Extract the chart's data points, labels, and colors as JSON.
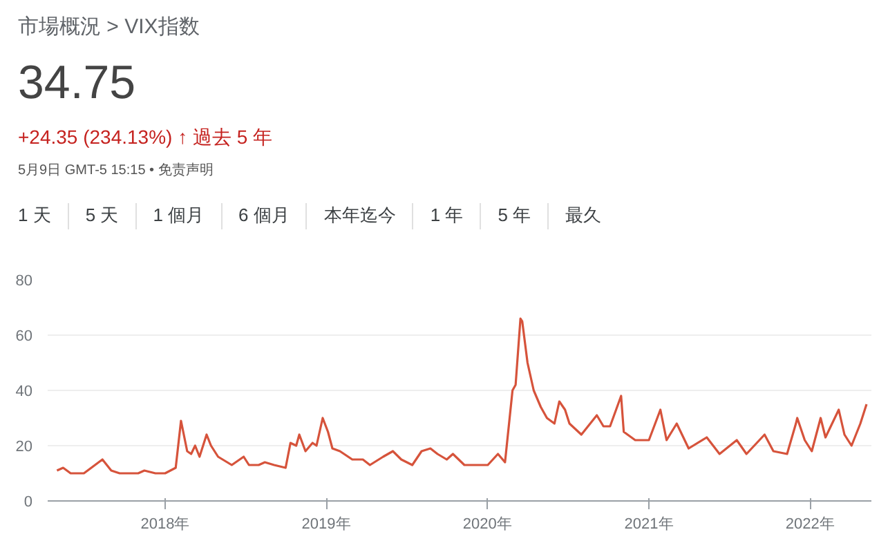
{
  "chart_data": {
    "type": "line",
    "title": "市場概況 > VIX指数",
    "subtitle": "34.75",
    "annotations": [
      "+24.35 (234.13%) ↑ 過去 5 年",
      "5月9日 GMT-5 15:15 • 免责声明",
      "1 天",
      "5 天",
      "1 個月",
      "6 個月",
      "本年迄今",
      "1 年",
      "5 年",
      "最久"
    ],
    "x": [
      "2017-05-01",
      "2017-05-15",
      "2017-06-01",
      "2017-07-01",
      "2017-08-12",
      "2017-09-01",
      "2017-09-20",
      "2017-10-15",
      "2017-11-01",
      "2017-11-15",
      "2017-12-10",
      "2018-01-01",
      "2018-01-25",
      "2018-02-06",
      "2018-02-20",
      "2018-03-01",
      "2018-03-10",
      "2018-03-20",
      "2018-04-05",
      "2018-04-15",
      "2018-05-01",
      "2018-06-01",
      "2018-06-28",
      "2018-07-10",
      "2018-08-01",
      "2018-08-15",
      "2018-09-05",
      "2018-10-01",
      "2018-10-12",
      "2018-10-25",
      "2018-11-01",
      "2018-11-15",
      "2018-12-01",
      "2018-12-10",
      "2018-12-24",
      "2019-01-05",
      "2019-01-15",
      "2019-02-01",
      "2019-03-01",
      "2019-03-25",
      "2019-04-10",
      "2019-05-10",
      "2019-06-01",
      "2019-06-20",
      "2019-07-15",
      "2019-08-05",
      "2019-08-25",
      "2019-09-10",
      "2019-10-01",
      "2019-10-15",
      "2019-11-10",
      "2019-12-10",
      "2020-01-02",
      "2020-01-25",
      "2020-02-10",
      "2020-02-27",
      "2020-03-05",
      "2020-03-16",
      "2020-03-20",
      "2020-04-01",
      "2020-04-15",
      "2020-05-01",
      "2020-05-15",
      "2020-06-01",
      "2020-06-12",
      "2020-06-25",
      "2020-07-05",
      "2020-08-01",
      "2020-09-05",
      "2020-09-20",
      "2020-10-05",
      "2020-10-30",
      "2020-11-05",
      "2020-12-01",
      "2021-01-01",
      "2021-01-27",
      "2021-02-10",
      "2021-03-05",
      "2021-04-01",
      "2021-05-12",
      "2021-06-10",
      "2021-07-19",
      "2021-08-10",
      "2021-09-20",
      "2021-10-10",
      "2021-11-10",
      "2021-11-30",
      "2021-12-03",
      "2021-12-20",
      "2022-01-05",
      "2022-01-25",
      "2022-02-05",
      "2022-03-07",
      "2022-03-20",
      "2022-04-05",
      "2022-04-25",
      "2022-05-09"
    ],
    "series": [
      {
        "color": "#d6533b",
        "values": [
          11,
          12,
          10,
          10,
          15,
          11,
          10,
          10,
          10,
          11,
          10,
          10,
          12,
          29,
          18,
          17,
          20,
          16,
          24,
          20,
          16,
          13,
          16,
          13,
          13,
          14,
          13,
          12,
          21,
          20,
          24,
          18,
          21,
          20,
          30,
          25,
          19,
          18,
          15,
          15,
          13,
          16,
          18,
          15,
          13,
          18,
          19,
          17,
          15,
          17,
          13,
          13,
          13,
          17,
          14,
          40,
          42,
          66,
          65,
          50,
          40,
          34,
          30,
          28,
          36,
          33,
          28,
          24,
          31,
          27,
          27,
          38,
          25,
          22,
          22,
          33,
          22,
          28,
          19,
          23,
          17,
          22,
          17,
          24,
          18,
          17,
          28,
          30,
          22,
          18,
          30,
          23,
          33,
          24,
          20,
          28,
          35
        ]
      }
    ],
    "xlim": [
      "2017-04-10",
      "2022-05-20"
    ],
    "ylim": [
      0,
      80
    ],
    "xticks": [
      {
        "value": "2018-01-01",
        "label": "2018年"
      },
      {
        "value": "2019-01-01",
        "label": "2019年"
      },
      {
        "value": "2020-01-01",
        "label": "2020年"
      },
      {
        "value": "2021-01-01",
        "label": "2021年"
      },
      {
        "value": "2022-01-01",
        "label": "2022年"
      }
    ],
    "yticks": [
      0,
      20,
      40,
      60,
      80
    ],
    "grid": "y",
    "line_style": "solid"
  }
}
